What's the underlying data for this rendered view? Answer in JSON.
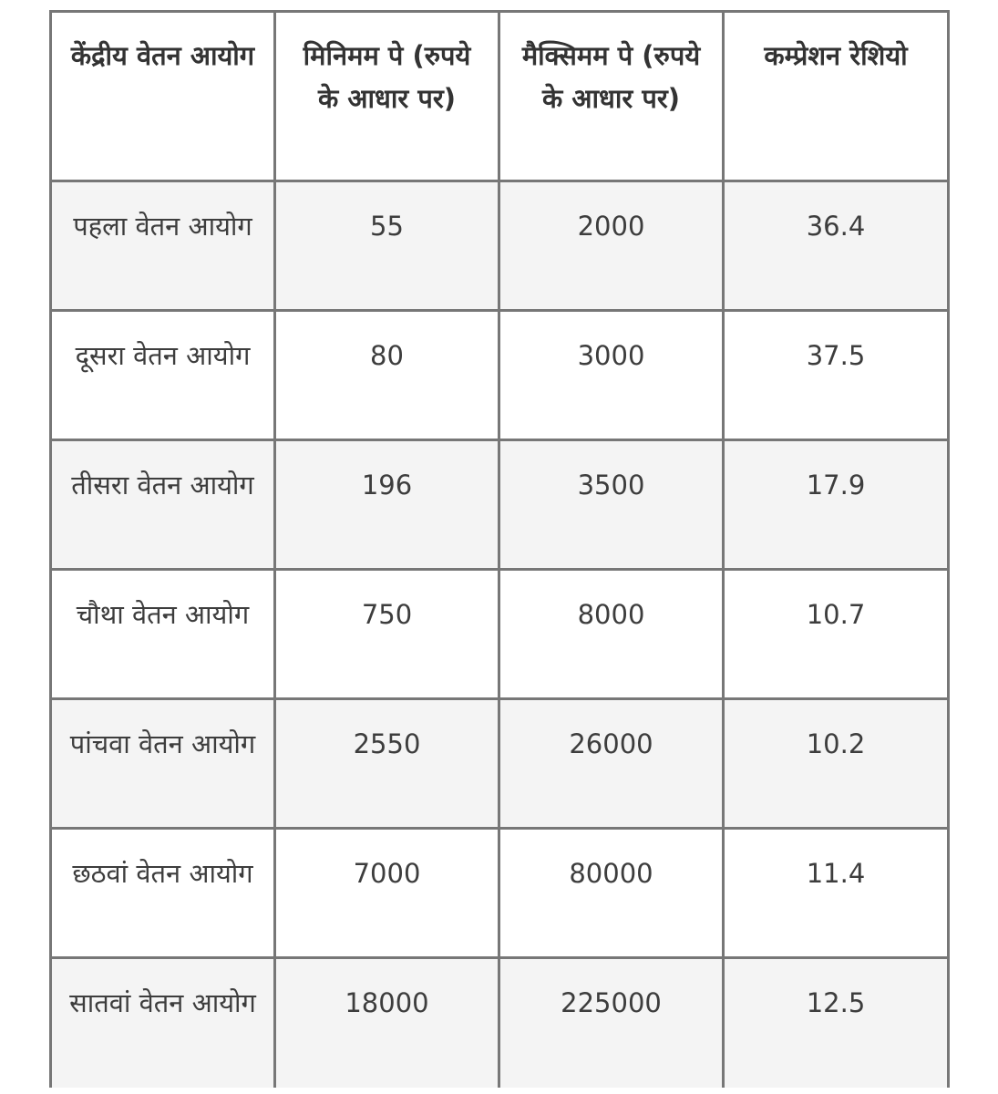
{
  "table": {
    "headers": [
      "केंद्रीय वेतन आयोग",
      "मिनिमम पे (रुपये के आधार पर)",
      "मैक्सिमम पे (रुपये के आधार पर)",
      "कम्प्रेशन रेशियो"
    ],
    "rows": [
      [
        "पहला वेतन आयोग",
        "55",
        "2000",
        "36.4"
      ],
      [
        "दूसरा वेतन आयोग",
        "80",
        "3000",
        "37.5"
      ],
      [
        "तीसरा वेतन आयोग",
        "196",
        "3500",
        "17.9"
      ],
      [
        "चौथा वेतन आयोग",
        "750",
        "8000",
        "10.7"
      ],
      [
        "पांचवा वेतन आयोग",
        "2550",
        "26000",
        "10.2"
      ],
      [
        "छठवां वेतन आयोग",
        "7000",
        "80000",
        "11.4"
      ],
      [
        "सातवां वेतन आयोग",
        "18000",
        "225000",
        "12.5"
      ]
    ]
  },
  "colors": {
    "border": "#777777",
    "row_alt": "#f4f4f4",
    "text": "#3d3d3d"
  }
}
